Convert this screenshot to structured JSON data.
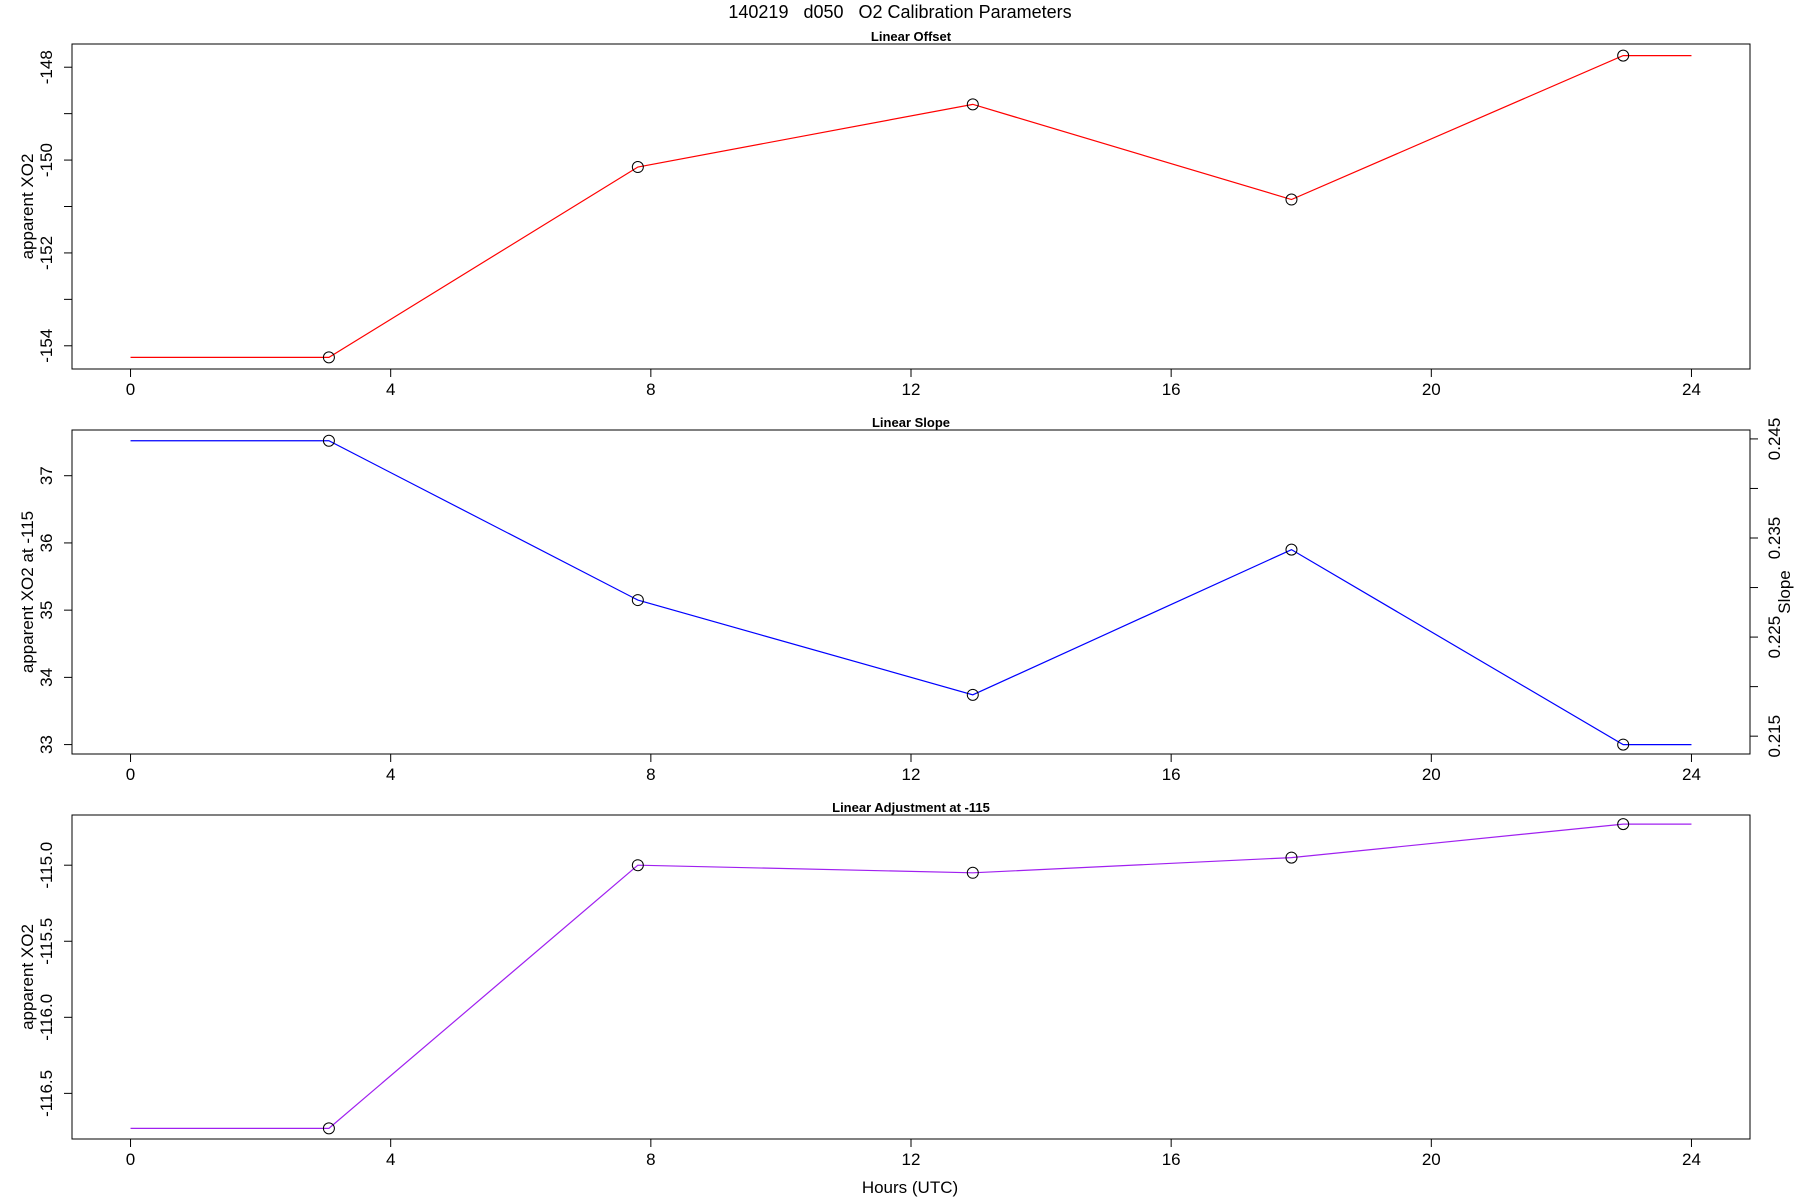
{
  "figure": {
    "title": "140219   d050   O2 Calibration Parameters",
    "xlabel": "Hours (UTC)"
  },
  "colors": {
    "offset": "#ff0000",
    "slope": "#0000ff",
    "adjust": "#a020f0",
    "axis": "#000000",
    "point_marker": "#000000"
  },
  "chart_data": [
    {
      "type": "line",
      "title": "Linear Offset",
      "ylabel": "apparent XO2",
      "xlim": [
        -0.9,
        24.9
      ],
      "ylim": [
        -154.5,
        -147.5
      ],
      "x_ticks": [
        0,
        4,
        8,
        12,
        16,
        20,
        24
      ],
      "x_tick_labels": [
        "0",
        "4",
        "8",
        "12",
        "16",
        "20",
        "24"
      ],
      "y_ticks": [
        -154,
        -153,
        -152,
        -151,
        -150,
        -149,
        -148
      ],
      "y_tick_labels": [
        "-154",
        "",
        "-152",
        "",
        "-150",
        "",
        "-148"
      ],
      "series": [
        {
          "x": [
            0,
            3.05,
            7.8,
            12.95,
            17.85,
            22.95,
            24
          ],
          "y": [
            -154.25,
            -154.25,
            -150.15,
            -148.8,
            -150.85,
            -147.75,
            -147.75
          ],
          "markers": [
            false,
            true,
            true,
            true,
            true,
            true,
            false
          ]
        }
      ],
      "grid": false
    },
    {
      "type": "line",
      "title": "Linear Slope",
      "ylabel": "apparent XO2 at -115",
      "ylabel_right": "Slope",
      "xlim": [
        -0.9,
        24.9
      ],
      "ylim": [
        32.86,
        37.68
      ],
      "x_ticks": [
        0,
        4,
        8,
        12,
        16,
        20,
        24
      ],
      "x_tick_labels": [
        "0",
        "4",
        "8",
        "12",
        "16",
        "20",
        "24"
      ],
      "y_ticks": [
        33,
        34,
        35,
        36,
        37
      ],
      "y_tick_labels": [
        "33",
        "34",
        "35",
        "36",
        "37"
      ],
      "y_right_lim": [
        0.2132,
        0.2459
      ],
      "y_right_ticks": [
        0.215,
        0.22,
        0.225,
        0.23,
        0.235,
        0.24,
        0.245
      ],
      "y_right_tick_labels": [
        "0.215",
        "",
        "0.225",
        "",
        "0.235",
        "",
        "0.245"
      ],
      "series": [
        {
          "x": [
            0,
            3.05,
            7.8,
            12.95,
            17.85,
            22.95,
            24
          ],
          "y": [
            37.52,
            37.52,
            35.15,
            33.74,
            35.9,
            33.0,
            33.0
          ],
          "markers": [
            false,
            true,
            true,
            true,
            true,
            true,
            false
          ]
        }
      ],
      "grid": false
    },
    {
      "type": "line",
      "title": "Linear Adjustment at -115",
      "ylabel": "apparent XO2",
      "xlim": [
        -0.9,
        24.9
      ],
      "ylim": [
        -116.8,
        -114.67
      ],
      "x_ticks": [
        0,
        4,
        8,
        12,
        16,
        20,
        24
      ],
      "x_tick_labels": [
        "0",
        "4",
        "8",
        "12",
        "16",
        "20",
        "24"
      ],
      "y_ticks": [
        -116.5,
        -116.0,
        -115.5,
        -115.0
      ],
      "y_tick_labels": [
        "-116.5",
        "-116.0",
        "-115.5",
        "-115.0"
      ],
      "series": [
        {
          "x": [
            0,
            3.05,
            7.8,
            12.95,
            17.85,
            22.95,
            24
          ],
          "y": [
            -116.73,
            -116.73,
            -115.0,
            -115.05,
            -114.95,
            -114.73,
            -114.73
          ],
          "markers": [
            false,
            true,
            true,
            true,
            true,
            true,
            false
          ]
        }
      ],
      "grid": false
    }
  ]
}
